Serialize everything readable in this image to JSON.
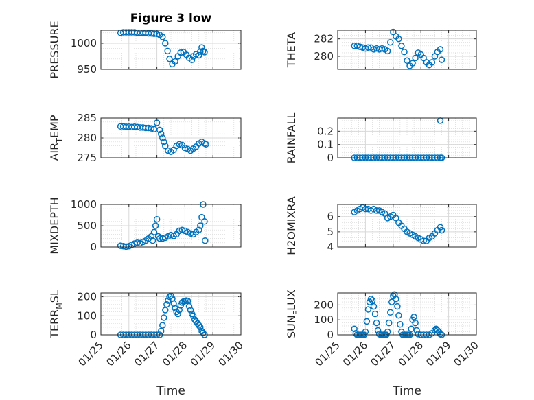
{
  "figure": {
    "title": "Figure 3 low"
  },
  "chart_data": [
    {
      "type": "scatter",
      "panel": "PRESSURE",
      "title": "Figure 3 low",
      "ylabel": {
        "pre": "PRESSURE",
        "sub": "",
        "post": ""
      },
      "xlabel": "",
      "show_xticks": false,
      "xlim": [
        "01/25",
        "01/30"
      ],
      "ylim": [
        950,
        1025
      ],
      "yticks": [
        "950",
        "1000"
      ],
      "grid": "on",
      "points": [
        [
          0.7,
          1020
        ],
        [
          0.8,
          1021
        ],
        [
          0.9,
          1021
        ],
        [
          1.0,
          1021
        ],
        [
          1.1,
          1021
        ],
        [
          1.2,
          1021
        ],
        [
          1.3,
          1020
        ],
        [
          1.4,
          1020
        ],
        [
          1.5,
          1020
        ],
        [
          1.6,
          1020
        ],
        [
          1.7,
          1019
        ],
        [
          1.8,
          1019
        ],
        [
          1.9,
          1018
        ],
        [
          2.0,
          1018
        ],
        [
          2.1,
          1016
        ],
        [
          2.2,
          1012
        ],
        [
          2.3,
          1000
        ],
        [
          2.38,
          985
        ],
        [
          2.45,
          970
        ],
        [
          2.55,
          960
        ],
        [
          2.65,
          965
        ],
        [
          2.75,
          975
        ],
        [
          2.85,
          982
        ],
        [
          2.95,
          983
        ],
        [
          3.05,
          978
        ],
        [
          3.15,
          972
        ],
        [
          3.25,
          968
        ],
        [
          3.3,
          975
        ],
        [
          3.4,
          979
        ],
        [
          3.5,
          977
        ],
        [
          3.55,
          984
        ],
        [
          3.6,
          992
        ],
        [
          3.65,
          985
        ],
        [
          3.7,
          983
        ]
      ]
    },
    {
      "type": "scatter",
      "panel": "THETA",
      "ylabel": {
        "pre": "THETA",
        "sub": "",
        "post": ""
      },
      "xlabel": "",
      "show_xticks": false,
      "xlim": [
        "01/25",
        "01/30"
      ],
      "ylim": [
        278.5,
        283
      ],
      "yticks": [
        "280",
        "282"
      ],
      "grid": "on",
      "points": [
        [
          0.6,
          281.2
        ],
        [
          0.7,
          281.2
        ],
        [
          0.8,
          281.1
        ],
        [
          0.9,
          281.0
        ],
        [
          1.0,
          280.9
        ],
        [
          1.1,
          281.0
        ],
        [
          1.2,
          281.0
        ],
        [
          1.3,
          280.8
        ],
        [
          1.4,
          280.9
        ],
        [
          1.5,
          280.8
        ],
        [
          1.6,
          280.9
        ],
        [
          1.7,
          280.8
        ],
        [
          1.8,
          280.6
        ],
        [
          1.9,
          281.6
        ],
        [
          2.0,
          282.8
        ],
        [
          2.1,
          282.3
        ],
        [
          2.2,
          282.0
        ],
        [
          2.3,
          281.2
        ],
        [
          2.4,
          280.5
        ],
        [
          2.5,
          279.5
        ],
        [
          2.6,
          278.9
        ],
        [
          2.7,
          279.2
        ],
        [
          2.8,
          279.8
        ],
        [
          2.9,
          280.4
        ],
        [
          3.0,
          280.2
        ],
        [
          3.1,
          279.8
        ],
        [
          3.2,
          279.3
        ],
        [
          3.3,
          279.0
        ],
        [
          3.4,
          279.3
        ],
        [
          3.5,
          280.0
        ],
        [
          3.6,
          280.5
        ],
        [
          3.7,
          280.8
        ],
        [
          3.75,
          279.6
        ]
      ]
    },
    {
      "type": "scatter",
      "panel": "AIR_TEMP",
      "ylabel": {
        "pre": "AIR",
        "sub": "T",
        "post": "EMP"
      },
      "xlabel": "",
      "show_xticks": false,
      "xlim": [
        "01/25",
        "01/30"
      ],
      "ylim": [
        275,
        285
      ],
      "yticks": [
        "275",
        "280",
        "285"
      ],
      "grid": "on",
      "points": [
        [
          0.7,
          282.9
        ],
        [
          0.8,
          282.9
        ],
        [
          0.9,
          282.8
        ],
        [
          1.0,
          282.8
        ],
        [
          1.1,
          282.7
        ],
        [
          1.2,
          282.8
        ],
        [
          1.3,
          282.7
        ],
        [
          1.4,
          282.6
        ],
        [
          1.5,
          282.6
        ],
        [
          1.6,
          282.5
        ],
        [
          1.7,
          282.5
        ],
        [
          1.8,
          282.4
        ],
        [
          1.9,
          282.2
        ],
        [
          2.0,
          283.8
        ],
        [
          2.1,
          282.0
        ],
        [
          2.15,
          281.0
        ],
        [
          2.2,
          280.0
        ],
        [
          2.25,
          279.0
        ],
        [
          2.3,
          278.0
        ],
        [
          2.4,
          276.8
        ],
        [
          2.5,
          276.5
        ],
        [
          2.6,
          277.0
        ],
        [
          2.7,
          278.0
        ],
        [
          2.8,
          278.4
        ],
        [
          2.9,
          278.2
        ],
        [
          3.0,
          277.5
        ],
        [
          3.1,
          277.2
        ],
        [
          3.2,
          276.8
        ],
        [
          3.3,
          277.3
        ],
        [
          3.4,
          277.8
        ],
        [
          3.5,
          278.6
        ],
        [
          3.6,
          279.0
        ],
        [
          3.7,
          278.6
        ],
        [
          3.75,
          278.4
        ]
      ]
    },
    {
      "type": "scatter",
      "panel": "RAINFALL",
      "ylabel": {
        "pre": "RAINFALL",
        "sub": "",
        "post": ""
      },
      "xlabel": "",
      "show_xticks": false,
      "xlim": [
        "01/25",
        "01/30"
      ],
      "ylim": [
        0,
        0.3
      ],
      "yticks": [
        "0",
        "0.1",
        "0.2"
      ],
      "grid": "on",
      "points": [
        [
          0.6,
          0
        ],
        [
          0.7,
          0
        ],
        [
          0.8,
          0
        ],
        [
          0.9,
          0
        ],
        [
          1.0,
          0
        ],
        [
          1.1,
          0
        ],
        [
          1.2,
          0
        ],
        [
          1.3,
          0
        ],
        [
          1.4,
          0
        ],
        [
          1.5,
          0
        ],
        [
          1.6,
          0
        ],
        [
          1.7,
          0
        ],
        [
          1.8,
          0
        ],
        [
          1.9,
          0
        ],
        [
          2.0,
          0
        ],
        [
          2.1,
          0
        ],
        [
          2.2,
          0
        ],
        [
          2.3,
          0
        ],
        [
          2.4,
          0
        ],
        [
          2.5,
          0
        ],
        [
          2.6,
          0
        ],
        [
          2.7,
          0
        ],
        [
          2.8,
          0
        ],
        [
          2.9,
          0
        ],
        [
          3.0,
          0
        ],
        [
          3.1,
          0
        ],
        [
          3.2,
          0
        ],
        [
          3.3,
          0
        ],
        [
          3.4,
          0
        ],
        [
          3.5,
          0
        ],
        [
          3.6,
          0
        ],
        [
          3.7,
          0
        ],
        [
          3.75,
          0
        ],
        [
          3.7,
          0.28
        ]
      ]
    },
    {
      "type": "scatter",
      "panel": "MIXDEPTH",
      "ylabel": {
        "pre": "MIXDEPTH",
        "sub": "",
        "post": ""
      },
      "xlabel": "",
      "show_xticks": false,
      "xlim": [
        "01/25",
        "01/30"
      ],
      "ylim": [
        0,
        1000
      ],
      "yticks": [
        "0",
        "500",
        "1000"
      ],
      "grid": "on",
      "points": [
        [
          0.7,
          30
        ],
        [
          0.8,
          20
        ],
        [
          0.9,
          10
        ],
        [
          1.0,
          20
        ],
        [
          1.1,
          50
        ],
        [
          1.2,
          80
        ],
        [
          1.3,
          100
        ],
        [
          1.4,
          90
        ],
        [
          1.5,
          120
        ],
        [
          1.6,
          150
        ],
        [
          1.7,
          200
        ],
        [
          1.8,
          250
        ],
        [
          1.85,
          150
        ],
        [
          1.9,
          350
        ],
        [
          1.95,
          500
        ],
        [
          2.0,
          650
        ],
        [
          2.05,
          250
        ],
        [
          2.1,
          200
        ],
        [
          2.2,
          200
        ],
        [
          2.3,
          220
        ],
        [
          2.4,
          250
        ],
        [
          2.5,
          280
        ],
        [
          2.6,
          260
        ],
        [
          2.7,
          300
        ],
        [
          2.8,
          380
        ],
        [
          2.9,
          400
        ],
        [
          3.0,
          380
        ],
        [
          3.1,
          350
        ],
        [
          3.2,
          320
        ],
        [
          3.3,
          300
        ],
        [
          3.4,
          350
        ],
        [
          3.5,
          400
        ],
        [
          3.55,
          500
        ],
        [
          3.6,
          700
        ],
        [
          3.65,
          1000
        ],
        [
          3.7,
          600
        ],
        [
          3.72,
          150
        ]
      ]
    },
    {
      "type": "scatter",
      "panel": "H2OMIXRA",
      "ylabel": {
        "pre": "H2OMIXRA",
        "sub": "",
        "post": ""
      },
      "xlabel": "",
      "show_xticks": false,
      "xlim": [
        "01/25",
        "01/30"
      ],
      "ylim": [
        4,
        6.8
      ],
      "yticks": [
        "4",
        "5",
        "6"
      ],
      "grid": "on",
      "points": [
        [
          0.6,
          6.3
        ],
        [
          0.7,
          6.4
        ],
        [
          0.8,
          6.5
        ],
        [
          0.9,
          6.6
        ],
        [
          1.0,
          6.5
        ],
        [
          1.1,
          6.5
        ],
        [
          1.2,
          6.4
        ],
        [
          1.3,
          6.5
        ],
        [
          1.4,
          6.4
        ],
        [
          1.5,
          6.4
        ],
        [
          1.6,
          6.3
        ],
        [
          1.7,
          6.2
        ],
        [
          1.8,
          5.9
        ],
        [
          1.9,
          6.0
        ],
        [
          2.0,
          6.1
        ],
        [
          2.1,
          5.9
        ],
        [
          2.2,
          5.6
        ],
        [
          2.3,
          5.4
        ],
        [
          2.4,
          5.2
        ],
        [
          2.5,
          5.0
        ],
        [
          2.6,
          4.9
        ],
        [
          2.7,
          4.8
        ],
        [
          2.8,
          4.7
        ],
        [
          2.9,
          4.6
        ],
        [
          3.0,
          4.5
        ],
        [
          3.1,
          4.4
        ],
        [
          3.2,
          4.4
        ],
        [
          3.3,
          4.6
        ],
        [
          3.4,
          4.7
        ],
        [
          3.5,
          4.9
        ],
        [
          3.6,
          5.1
        ],
        [
          3.7,
          5.3
        ],
        [
          3.75,
          5.1
        ]
      ]
    },
    {
      "type": "scatter",
      "panel": "TERR_MSL",
      "ylabel": {
        "pre": "TERR",
        "sub": "M",
        "post": "SL"
      },
      "xlabel": "Time",
      "show_xticks": true,
      "xlim": [
        "01/25",
        "01/30"
      ],
      "ylim": [
        0,
        220
      ],
      "yticks": [
        "0",
        "100",
        "200"
      ],
      "grid": "on",
      "xticks": [
        "01/25",
        "01/26",
        "01/27",
        "01/28",
        "01/29",
        "01/30"
      ],
      "points": [
        [
          0.7,
          0
        ],
        [
          0.8,
          0
        ],
        [
          0.9,
          0
        ],
        [
          1.0,
          0
        ],
        [
          1.1,
          0
        ],
        [
          1.2,
          0
        ],
        [
          1.3,
          0
        ],
        [
          1.4,
          0
        ],
        [
          1.5,
          0
        ],
        [
          1.6,
          0
        ],
        [
          1.7,
          0
        ],
        [
          1.8,
          0
        ],
        [
          1.9,
          0
        ],
        [
          2.0,
          0
        ],
        [
          2.1,
          0
        ],
        [
          2.15,
          20
        ],
        [
          2.2,
          50
        ],
        [
          2.25,
          90
        ],
        [
          2.3,
          130
        ],
        [
          2.35,
          160
        ],
        [
          2.4,
          180
        ],
        [
          2.45,
          200
        ],
        [
          2.5,
          205
        ],
        [
          2.55,
          190
        ],
        [
          2.6,
          165
        ],
        [
          2.65,
          140
        ],
        [
          2.7,
          120
        ],
        [
          2.75,
          110
        ],
        [
          2.8,
          130
        ],
        [
          2.85,
          155
        ],
        [
          2.9,
          170
        ],
        [
          2.95,
          175
        ],
        [
          3.0,
          178
        ],
        [
          3.05,
          180
        ],
        [
          3.1,
          178
        ],
        [
          3.15,
          150
        ],
        [
          3.2,
          130
        ],
        [
          3.25,
          110
        ],
        [
          3.3,
          100
        ],
        [
          3.35,
          80
        ],
        [
          3.4,
          70
        ],
        [
          3.45,
          60
        ],
        [
          3.5,
          50
        ],
        [
          3.55,
          40
        ],
        [
          3.6,
          20
        ],
        [
          3.65,
          10
        ],
        [
          3.7,
          0
        ]
      ]
    },
    {
      "type": "scatter",
      "panel": "SUN_FLUX",
      "ylabel": {
        "pre": "SUN",
        "sub": "F",
        "post": "LUX"
      },
      "xlabel": "Time",
      "show_xticks": true,
      "xlim": [
        "01/25",
        "01/30"
      ],
      "ylim": [
        0,
        280
      ],
      "yticks": [
        "0",
        "100",
        "200"
      ],
      "grid": "on",
      "xticks": [
        "01/25",
        "01/26",
        "01/27",
        "01/28",
        "01/29",
        "01/30"
      ],
      "points": [
        [
          0.6,
          40
        ],
        [
          0.65,
          10
        ],
        [
          0.7,
          0
        ],
        [
          0.75,
          0
        ],
        [
          0.8,
          0
        ],
        [
          0.85,
          0
        ],
        [
          0.9,
          0
        ],
        [
          0.95,
          0
        ],
        [
          1.0,
          20
        ],
        [
          1.05,
          90
        ],
        [
          1.1,
          170
        ],
        [
          1.15,
          220
        ],
        [
          1.2,
          240
        ],
        [
          1.25,
          230
        ],
        [
          1.3,
          190
        ],
        [
          1.35,
          140
        ],
        [
          1.4,
          80
        ],
        [
          1.45,
          30
        ],
        [
          1.5,
          5
        ],
        [
          1.55,
          0
        ],
        [
          1.6,
          0
        ],
        [
          1.65,
          0
        ],
        [
          1.7,
          0
        ],
        [
          1.75,
          0
        ],
        [
          1.8,
          20
        ],
        [
          1.85,
          80
        ],
        [
          1.9,
          150
        ],
        [
          1.95,
          220
        ],
        [
          2.0,
          260
        ],
        [
          2.05,
          270
        ],
        [
          2.1,
          240
        ],
        [
          2.15,
          190
        ],
        [
          2.2,
          130
        ],
        [
          2.25,
          70
        ],
        [
          2.3,
          20
        ],
        [
          2.35,
          0
        ],
        [
          2.4,
          0
        ],
        [
          2.45,
          0
        ],
        [
          2.5,
          0
        ],
        [
          2.55,
          0
        ],
        [
          2.6,
          0
        ],
        [
          2.65,
          40
        ],
        [
          2.7,
          100
        ],
        [
          2.75,
          120
        ],
        [
          2.8,
          80
        ],
        [
          2.85,
          30
        ],
        [
          2.9,
          5
        ],
        [
          3.0,
          0
        ],
        [
          3.1,
          0
        ],
        [
          3.2,
          0
        ],
        [
          3.3,
          0
        ],
        [
          3.4,
          10
        ],
        [
          3.5,
          30
        ],
        [
          3.55,
          40
        ],
        [
          3.6,
          30
        ],
        [
          3.65,
          20
        ],
        [
          3.7,
          5
        ],
        [
          3.75,
          0
        ]
      ]
    }
  ]
}
